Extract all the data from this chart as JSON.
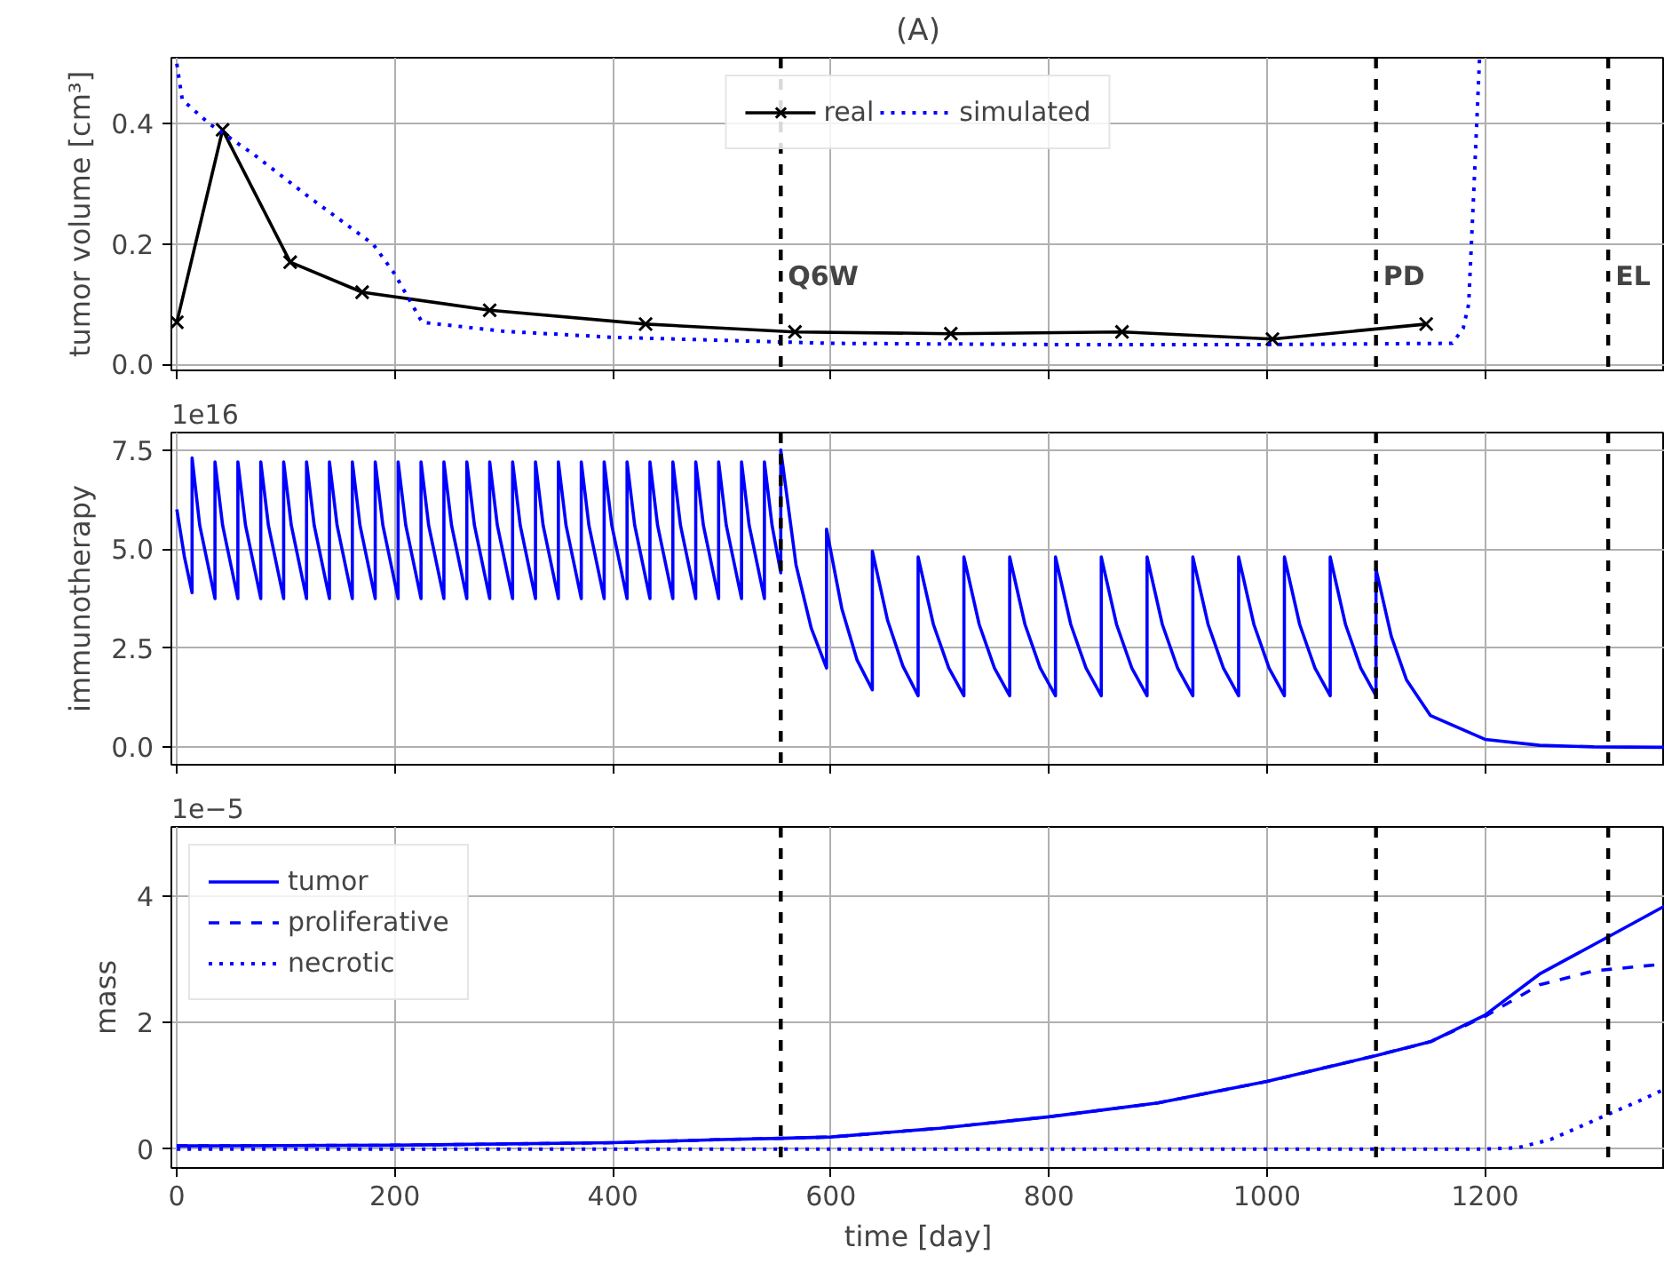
{
  "chart_data": [
    {
      "type": "line",
      "title": "(A)",
      "ylabel": "tumor volume [cm³]",
      "xlim": [
        -5,
        1365
      ],
      "xticks": [
        0,
        200,
        400,
        600,
        800,
        1000,
        1200
      ],
      "ylim": [
        -0.01,
        0.51
      ],
      "yticks": [
        {
          "value": 0,
          "label": "0.0"
        },
        {
          "value": 0.2,
          "label": "0.2"
        },
        {
          "value": 0.4,
          "label": "0.4"
        }
      ],
      "grid": true,
      "legend": "top",
      "tick_labels": "y",
      "ref_lines": [
        {
          "axis": "x",
          "value": 554,
          "label": "Q6W",
          "color": "#000000",
          "line_style": "dashed"
        },
        {
          "axis": "x",
          "value": 1100,
          "label": "PD",
          "color": "#000000",
          "line_style": "dashed"
        },
        {
          "axis": "x",
          "value": 1313,
          "label": "EL",
          "color": "#000000",
          "line_style": "dashed"
        }
      ],
      "series": [
        {
          "name": "real",
          "color": "#000000",
          "marker": "cross",
          "line_style": "solid",
          "x": [
            0,
            42,
            104,
            170,
            287,
            430,
            567,
            710,
            867,
            1005,
            1146
          ],
          "values": [
            0.07,
            0.39,
            0.17,
            0.12,
            0.09,
            0.067,
            0.054,
            0.051,
            0.054,
            0.042,
            0.067
          ]
        },
        {
          "name": "simulated",
          "color": "#0000ff",
          "marker": "none",
          "line_style": "dotted",
          "x": [
            0,
            5,
            30,
            70,
            120,
            180,
            200,
            225,
            300,
            400,
            500,
            600,
            800,
            1000,
            1170,
            1180,
            1185,
            1190,
            1195
          ],
          "values": [
            0.5,
            0.44,
            0.4,
            0.35,
            0.28,
            0.2,
            0.15,
            0.07,
            0.055,
            0.045,
            0.04,
            0.035,
            0.033,
            0.033,
            0.035,
            0.06,
            0.1,
            0.3,
            0.51
          ]
        }
      ]
    },
    {
      "type": "line",
      "ylabel": "immunotherapy",
      "annotations": [
        "1e16"
      ],
      "xlim": [
        -5,
        1365
      ],
      "xticks": [
        0,
        200,
        400,
        600,
        800,
        1000,
        1200
      ],
      "ylim": [
        -0.44,
        7.94
      ],
      "yticks": [
        {
          "value": 0,
          "label": "0.0"
        },
        {
          "value": 2.5,
          "label": "2.5"
        },
        {
          "value": 5,
          "label": "5.0"
        },
        {
          "value": 7.5,
          "label": "7.5"
        }
      ],
      "grid": true,
      "tick_labels": "y",
      "ref_lines": [
        {
          "axis": "x",
          "value": 554,
          "color": "#000000",
          "line_style": "dashed"
        },
        {
          "axis": "x",
          "value": 1100,
          "color": "#000000",
          "line_style": "dashed"
        },
        {
          "axis": "x",
          "value": 1313,
          "color": "#000000",
          "line_style": "dashed"
        }
      ],
      "series": [
        {
          "color": "#0000ff",
          "marker": "none",
          "line_style": "solid",
          "x": [
            0,
            7,
            14,
            14,
            21,
            35,
            35,
            42,
            56,
            56,
            63,
            77,
            77,
            84,
            98,
            98,
            105,
            119,
            119,
            126,
            140,
            140,
            147,
            161,
            161,
            168,
            182,
            182,
            189,
            203,
            203,
            210,
            224,
            224,
            231,
            245,
            245,
            252,
            266,
            266,
            273,
            287,
            287,
            294,
            308,
            308,
            315,
            329,
            329,
            336,
            350,
            350,
            357,
            371,
            371,
            378,
            392,
            392,
            399,
            413,
            413,
            420,
            434,
            434,
            441,
            455,
            455,
            462,
            476,
            476,
            483,
            497,
            497,
            504,
            518,
            518,
            525,
            539,
            539,
            546,
            554,
            554,
            568,
            582,
            596,
            596,
            610,
            624,
            638,
            638,
            652,
            666,
            680,
            680,
            694,
            708,
            722,
            722,
            736,
            750,
            764,
            764,
            778,
            792,
            806,
            806,
            820,
            834,
            848,
            848,
            862,
            876,
            890,
            890,
            904,
            918,
            932,
            932,
            946,
            960,
            974,
            974,
            988,
            1002,
            1016,
            1016,
            1030,
            1044,
            1058,
            1058,
            1072,
            1086,
            1100,
            1100,
            1114,
            1128,
            1150,
            1200,
            1250,
            1300,
            1365
          ],
          "values": [
            6.0,
            4.8,
            3.9,
            7.3,
            5.6,
            3.75,
            7.2,
            5.6,
            3.75,
            7.2,
            5.6,
            3.75,
            7.2,
            5.6,
            3.75,
            7.2,
            5.6,
            3.75,
            7.2,
            5.6,
            3.75,
            7.2,
            5.6,
            3.75,
            7.2,
            5.6,
            3.75,
            7.2,
            5.6,
            3.75,
            7.2,
            5.6,
            3.75,
            7.2,
            5.6,
            3.75,
            7.2,
            5.6,
            3.75,
            7.2,
            5.6,
            3.75,
            7.2,
            5.6,
            3.75,
            7.2,
            5.6,
            3.75,
            7.2,
            5.6,
            3.75,
            7.2,
            5.6,
            3.75,
            7.2,
            5.6,
            3.75,
            7.2,
            5.6,
            3.75,
            7.2,
            5.6,
            3.75,
            7.2,
            5.6,
            3.75,
            7.2,
            5.6,
            3.75,
            7.2,
            5.6,
            3.75,
            7.2,
            5.6,
            3.75,
            7.2,
            5.6,
            3.75,
            7.2,
            5.6,
            4.4,
            7.5,
            4.6,
            3.0,
            2.0,
            5.5,
            3.5,
            2.2,
            1.45,
            4.95,
            3.2,
            2.05,
            1.3,
            4.8,
            3.1,
            2.0,
            1.3,
            4.8,
            3.1,
            2.0,
            1.3,
            4.8,
            3.1,
            2.0,
            1.3,
            4.8,
            3.1,
            2.0,
            1.3,
            4.8,
            3.1,
            2.0,
            1.3,
            4.8,
            3.1,
            2.0,
            1.3,
            4.8,
            3.1,
            2.0,
            1.3,
            4.8,
            3.1,
            2.0,
            1.3,
            4.8,
            3.1,
            2.0,
            1.3,
            4.8,
            3.1,
            2.0,
            1.3,
            4.5,
            2.8,
            1.7,
            0.8,
            0.2,
            0.05,
            0.01,
            0.0
          ]
        }
      ]
    },
    {
      "type": "line",
      "xlabel": "time [day]",
      "ylabel": "mass",
      "annotations": [
        "1e−5"
      ],
      "xlim": [
        -5,
        1365
      ],
      "xticks": [
        0,
        200,
        400,
        600,
        800,
        1000,
        1200
      ],
      "ylim": [
        -0.3,
        5.1
      ],
      "yticks": [
        0,
        2,
        4
      ],
      "grid": true,
      "legend": "top left",
      "ref_lines": [
        {
          "axis": "x",
          "value": 554,
          "color": "#000000",
          "line_style": "dashed"
        },
        {
          "axis": "x",
          "value": 1100,
          "color": "#000000",
          "line_style": "dashed"
        },
        {
          "axis": "x",
          "value": 1313,
          "color": "#000000",
          "line_style": "dashed"
        }
      ],
      "series": [
        {
          "name": "tumor",
          "color": "#0000ff",
          "marker": "none",
          "line_style": "solid",
          "x": [
            0,
            200,
            400,
            500,
            554,
            600,
            700,
            800,
            900,
            1000,
            1100,
            1150,
            1200,
            1250,
            1313,
            1365
          ],
          "values": [
            0.05,
            0.06,
            0.1,
            0.15,
            0.17,
            0.19,
            0.33,
            0.51,
            0.73,
            1.07,
            1.48,
            1.7,
            2.12,
            2.77,
            3.36,
            3.85
          ]
        },
        {
          "name": "proliferative",
          "color": "#0000ff",
          "marker": "none",
          "line_style": "dashed",
          "x": [
            0,
            200,
            400,
            500,
            554,
            600,
            700,
            800,
            900,
            1000,
            1100,
            1150,
            1200,
            1250,
            1300,
            1365
          ],
          "values": [
            0.05,
            0.06,
            0.1,
            0.15,
            0.17,
            0.19,
            0.33,
            0.51,
            0.73,
            1.07,
            1.48,
            1.7,
            2.1,
            2.6,
            2.82,
            2.93
          ]
        },
        {
          "name": "necrotic",
          "color": "#0000ff",
          "marker": "none",
          "line_style": "dotted",
          "x": [
            0,
            400,
            800,
            1200,
            1230,
            1260,
            1280,
            1313,
            1340,
            1365
          ],
          "values": [
            0.0,
            0.0,
            0.0,
            0.0,
            0.02,
            0.15,
            0.3,
            0.55,
            0.75,
            0.95
          ]
        }
      ]
    }
  ]
}
